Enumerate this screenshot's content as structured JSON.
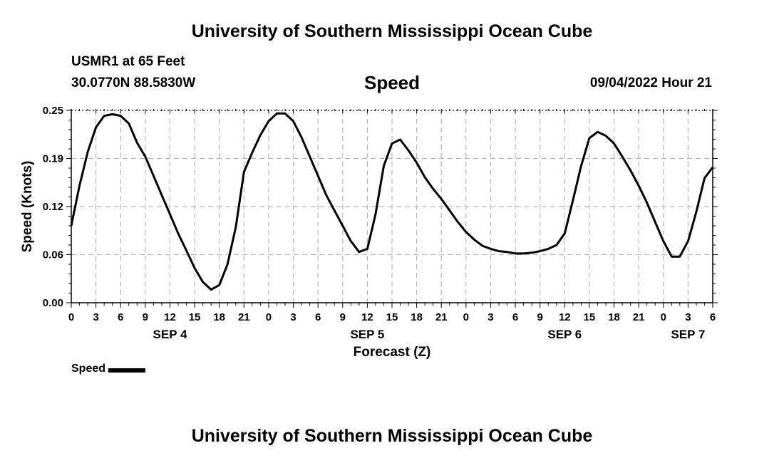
{
  "header": {
    "title": "University of Southern Mississippi Ocean Cube",
    "station": "USMR1 at 65 Feet",
    "coords": "30.0770N  88.5830W",
    "variable": "Speed",
    "datetime": "09/04/2022 Hour 21",
    "footer_title": "University of Southern Mississippi Ocean Cube"
  },
  "legend": {
    "label": "Speed"
  },
  "colors": {
    "line": "#000000",
    "grid": "#bbbbbb",
    "background": "#ffffff"
  },
  "chart_data": {
    "type": "line",
    "title": "Speed",
    "xlabel": "Forecast (Z)",
    "ylabel": "Speed (Knots)",
    "xlim": [
      0,
      78
    ],
    "ylim": [
      0,
      0.25
    ],
    "x_ticks": [
      0,
      3,
      6,
      9,
      12,
      15,
      18,
      21,
      24,
      27,
      30,
      33,
      36,
      39,
      42,
      45,
      48,
      51,
      54,
      57,
      60,
      63,
      66,
      69,
      72,
      75,
      78
    ],
    "x_tick_labels": [
      "0",
      "3",
      "6",
      "9",
      "12",
      "15",
      "18",
      "21",
      "0",
      "3",
      "6",
      "9",
      "12",
      "15",
      "18",
      "21",
      "0",
      "3",
      "6",
      "9",
      "12",
      "15",
      "18",
      "21",
      "0",
      "3",
      "6"
    ],
    "y_ticks": [
      0,
      0.0625,
      0.125,
      0.1875,
      0.25
    ],
    "y_tick_labels": [
      "0.00",
      "0.06",
      "0.12",
      "0.19",
      "0.25"
    ],
    "day_labels": [
      {
        "label": "SEP 4",
        "x": 12
      },
      {
        "label": "SEP 5",
        "x": 36
      },
      {
        "label": "SEP 6",
        "x": 60
      },
      {
        "label": "SEP 7",
        "x": 75
      }
    ],
    "grid": true,
    "legend_position": "bottom-left",
    "series": [
      {
        "name": "Speed",
        "x": [
          0,
          1,
          2,
          3,
          4,
          5,
          6,
          7,
          8,
          9,
          10,
          11,
          12,
          13,
          14,
          15,
          16,
          17,
          18,
          19,
          20,
          21,
          22,
          23,
          24,
          25,
          26,
          27,
          28,
          29,
          30,
          31,
          32,
          33,
          34,
          35,
          36,
          37,
          38,
          39,
          40,
          41,
          42,
          43,
          44,
          45,
          46,
          47,
          48,
          49,
          50,
          51,
          52,
          53,
          54,
          55,
          56,
          57,
          58,
          59,
          60,
          61,
          62,
          63,
          64,
          65,
          66,
          67,
          68,
          69,
          70,
          71,
          72,
          73,
          74,
          75,
          76,
          77,
          78
        ],
        "values": [
          0.1,
          0.152,
          0.196,
          0.228,
          0.243,
          0.245,
          0.243,
          0.233,
          0.208,
          0.19,
          0.165,
          0.14,
          0.115,
          0.09,
          0.068,
          0.045,
          0.027,
          0.017,
          0.023,
          0.05,
          0.098,
          0.17,
          0.195,
          0.218,
          0.236,
          0.246,
          0.246,
          0.236,
          0.215,
          0.19,
          0.165,
          0.14,
          0.12,
          0.1,
          0.08,
          0.066,
          0.07,
          0.115,
          0.178,
          0.207,
          0.212,
          0.198,
          0.182,
          0.163,
          0.148,
          0.135,
          0.12,
          0.105,
          0.092,
          0.082,
          0.074,
          0.07,
          0.067,
          0.066,
          0.064,
          0.064,
          0.065,
          0.067,
          0.07,
          0.075,
          0.09,
          0.133,
          0.178,
          0.214,
          0.222,
          0.217,
          0.207,
          0.19,
          0.172,
          0.152,
          0.13,
          0.105,
          0.08,
          0.06,
          0.06,
          0.08,
          0.118,
          0.162,
          0.176
        ]
      }
    ]
  }
}
